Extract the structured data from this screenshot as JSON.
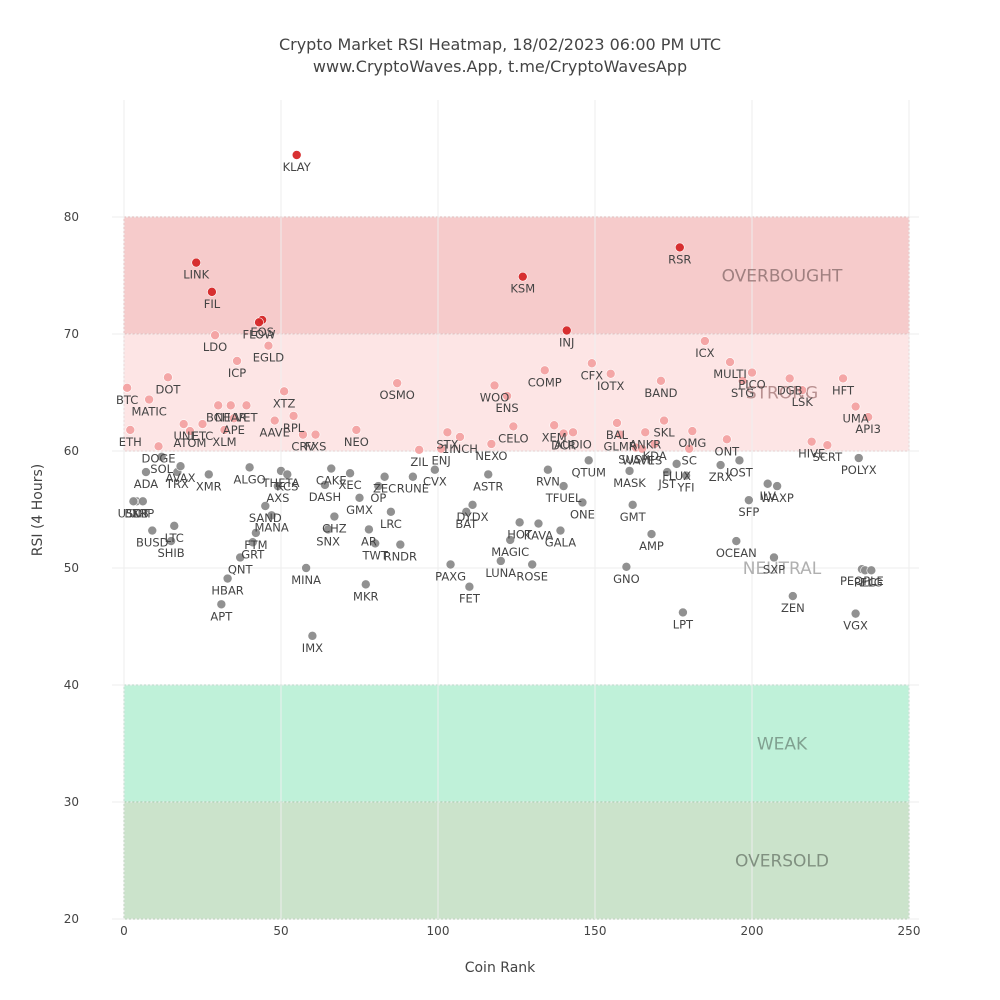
{
  "chart_data": {
    "type": "scatter",
    "title": "Crypto Market RSI Heatmap, 18/02/2023 06:00 PM UTC",
    "subtitle": "www.CryptoWaves.App, t.me/CryptoWavesApp",
    "xlabel": "Coin Rank",
    "ylabel": "RSI (4 Hours)",
    "xlim": [
      0,
      250
    ],
    "ylim": [
      20,
      90
    ],
    "xticks": [
      0,
      50,
      100,
      150,
      200,
      250
    ],
    "yticks": [
      20,
      30,
      40,
      50,
      60,
      70,
      80
    ],
    "grid": true,
    "zones": [
      {
        "name": "OVERBOUGHT",
        "y0": 70,
        "y1": 80,
        "fill": "#f0a8a8",
        "border": "#cc2222",
        "text_color": "#a08080"
      },
      {
        "name": "STRONG",
        "y0": 60,
        "y1": 70,
        "fill": "#fbd3d3",
        "border": "#e08080",
        "text_color": "#b89090"
      },
      {
        "name": "NEUTRAL",
        "y0": 40,
        "y1": 60,
        "fill": "none",
        "border": "none",
        "text_color": "#b0b0b0"
      },
      {
        "name": "WEAK",
        "y0": 30,
        "y1": 40,
        "fill": "#95e8c0",
        "border": "#22aa66",
        "text_color": "#80a090"
      },
      {
        "name": "OVERSOLD",
        "y0": 20,
        "y1": 30,
        "fill": "#a8d0a8",
        "border": "#117711",
        "text_color": "#809080"
      }
    ],
    "point_colors": {
      "overbought": "#d62728",
      "strong": "#f4a3a3",
      "neutral": "#8c8c8c",
      "weak": "#66cc99",
      "oversold": "#2e8b57"
    },
    "points": [
      {
        "label": "BTC",
        "x": 1,
        "y": 65.4
      },
      {
        "label": "ETH",
        "x": 2,
        "y": 61.8
      },
      {
        "label": "BNB",
        "x": 4,
        "y": 55.7
      },
      {
        "label": "USDT",
        "x": 3,
        "y": 55.7
      },
      {
        "label": "XRP",
        "x": 6,
        "y": 55.7
      },
      {
        "label": "ADA",
        "x": 7,
        "y": 58.2
      },
      {
        "label": "MATIC",
        "x": 8,
        "y": 64.4
      },
      {
        "label": "DOGE",
        "x": 11,
        "y": 60.4
      },
      {
        "label": "BUSD",
        "x": 9,
        "y": 53.2
      },
      {
        "label": "SOL",
        "x": 12,
        "y": 59.5
      },
      {
        "label": "DOT",
        "x": 14,
        "y": 66.3
      },
      {
        "label": "SHIB",
        "x": 15,
        "y": 52.3
      },
      {
        "label": "LTC",
        "x": 16,
        "y": 53.6
      },
      {
        "label": "TRX",
        "x": 17,
        "y": 58.2
      },
      {
        "label": "AVAX",
        "x": 18,
        "y": 58.7
      },
      {
        "label": "UNI",
        "x": 19,
        "y": 62.3
      },
      {
        "label": "ATOM",
        "x": 21,
        "y": 61.7
      },
      {
        "label": "LINK",
        "x": 23,
        "y": 76.1
      },
      {
        "label": "ETC",
        "x": 25,
        "y": 62.3
      },
      {
        "label": "XMR",
        "x": 27,
        "y": 58.0
      },
      {
        "label": "FIL",
        "x": 28,
        "y": 73.6
      },
      {
        "label": "LDO",
        "x": 29,
        "y": 69.9
      },
      {
        "label": "BCH",
        "x": 30,
        "y": 63.9
      },
      {
        "label": "XLM",
        "x": 32,
        "y": 61.8
      },
      {
        "label": "HBAR",
        "x": 33,
        "y": 49.1
      },
      {
        "label": "NEAR",
        "x": 34,
        "y": 63.9
      },
      {
        "label": "APE",
        "x": 35,
        "y": 62.8
      },
      {
        "label": "ICP",
        "x": 36,
        "y": 67.7
      },
      {
        "label": "QNT",
        "x": 37,
        "y": 50.9
      },
      {
        "label": "APT",
        "x": 31,
        "y": 46.9
      },
      {
        "label": "VET",
        "x": 39,
        "y": 63.9
      },
      {
        "label": "ALGO",
        "x": 40,
        "y": 58.6
      },
      {
        "label": "GRT",
        "x": 41,
        "y": 52.2
      },
      {
        "label": "FTM",
        "x": 42,
        "y": 53.0
      },
      {
        "label": "SAND",
        "x": 45,
        "y": 55.3
      },
      {
        "label": "EOS",
        "x": 44,
        "y": 71.2
      },
      {
        "label": "FLOW",
        "x": 43,
        "y": 71.0
      },
      {
        "label": "EGLD",
        "x": 46,
        "y": 69.0
      },
      {
        "label": "MANA",
        "x": 47,
        "y": 54.5
      },
      {
        "label": "AAVE",
        "x": 48,
        "y": 62.6
      },
      {
        "label": "AXS",
        "x": 49,
        "y": 57.0
      },
      {
        "label": "THETA",
        "x": 50,
        "y": 58.3
      },
      {
        "label": "XTZ",
        "x": 51,
        "y": 65.1
      },
      {
        "label": "KCS",
        "x": 52,
        "y": 58.0
      },
      {
        "label": "MINA",
        "x": 58,
        "y": 50.0
      },
      {
        "label": "RPL",
        "x": 54,
        "y": 63.0
      },
      {
        "label": "KLAY",
        "x": 55,
        "y": 85.3
      },
      {
        "label": "CRV",
        "x": 57,
        "y": 61.4
      },
      {
        "label": "FXS",
        "x": 61,
        "y": 61.4
      },
      {
        "label": "IMX",
        "x": 60,
        "y": 44.2
      },
      {
        "label": "SNX",
        "x": 65,
        "y": 53.3
      },
      {
        "label": "CHZ",
        "x": 67,
        "y": 54.4
      },
      {
        "label": "CAKE",
        "x": 66,
        "y": 58.5
      },
      {
        "label": "DASH",
        "x": 64,
        "y": 57.1
      },
      {
        "label": "XEC",
        "x": 72,
        "y": 58.1
      },
      {
        "label": "NEO",
        "x": 74,
        "y": 61.8
      },
      {
        "label": "GMX",
        "x": 75,
        "y": 56.0
      },
      {
        "label": "MKR",
        "x": 77,
        "y": 48.6
      },
      {
        "label": "AR",
        "x": 78,
        "y": 53.3
      },
      {
        "label": "TWT",
        "x": 80,
        "y": 52.1
      },
      {
        "label": "OP",
        "x": 81,
        "y": 57.0
      },
      {
        "label": "ZEC",
        "x": 83,
        "y": 57.8
      },
      {
        "label": "LRC",
        "x": 85,
        "y": 54.8
      },
      {
        "label": "RNDR",
        "x": 88,
        "y": 52.0
      },
      {
        "label": "OSMO",
        "x": 87,
        "y": 65.8
      },
      {
        "label": "RUNE",
        "x": 92,
        "y": 57.8
      },
      {
        "label": "ZIL",
        "x": 94,
        "y": 60.1
      },
      {
        "label": "CVX",
        "x": 99,
        "y": 58.4
      },
      {
        "label": "ENJ",
        "x": 101,
        "y": 60.2
      },
      {
        "label": "STX",
        "x": 103,
        "y": 61.6
      },
      {
        "label": "PAXG",
        "x": 104,
        "y": 50.3
      },
      {
        "label": "1INCH",
        "x": 107,
        "y": 61.2
      },
      {
        "label": "BAT",
        "x": 109,
        "y": 54.8
      },
      {
        "label": "DYDX",
        "x": 111,
        "y": 55.4
      },
      {
        "label": "FET",
        "x": 110,
        "y": 48.4
      },
      {
        "label": "ASTR",
        "x": 116,
        "y": 58.0
      },
      {
        "label": "NEXO",
        "x": 117,
        "y": 60.6
      },
      {
        "label": "WOO",
        "x": 118,
        "y": 65.6
      },
      {
        "label": "LUNA",
        "x": 120,
        "y": 50.6
      },
      {
        "label": "MAGIC",
        "x": 123,
        "y": 52.4
      },
      {
        "label": "ENS",
        "x": 122,
        "y": 64.7
      },
      {
        "label": "CELO",
        "x": 124,
        "y": 62.1
      },
      {
        "label": "HOT",
        "x": 126,
        "y": 53.9
      },
      {
        "label": "KSM",
        "x": 127,
        "y": 74.9
      },
      {
        "label": "ROSE",
        "x": 130,
        "y": 50.3
      },
      {
        "label": "KAVA",
        "x": 132,
        "y": 53.8
      },
      {
        "label": "COMP",
        "x": 134,
        "y": 66.9
      },
      {
        "label": "RVN",
        "x": 135,
        "y": 58.4
      },
      {
        "label": "XEM",
        "x": 137,
        "y": 62.2
      },
      {
        "label": "DCR",
        "x": 140,
        "y": 61.5
      },
      {
        "label": "GALA",
        "x": 139,
        "y": 53.2
      },
      {
        "label": "TFUEL",
        "x": 140,
        "y": 57.0
      },
      {
        "label": "INJ",
        "x": 141,
        "y": 70.3
      },
      {
        "label": "AUDIO",
        "x": 143,
        "y": 61.6
      },
      {
        "label": "ONE",
        "x": 146,
        "y": 55.6
      },
      {
        "label": "QTUM",
        "x": 148,
        "y": 59.2
      },
      {
        "label": "CFX",
        "x": 149,
        "y": 67.5
      },
      {
        "label": "IOTX",
        "x": 155,
        "y": 66.6
      },
      {
        "label": "BAL",
        "x": 157,
        "y": 62.4
      },
      {
        "label": "GLMR",
        "x": 158,
        "y": 61.4
      },
      {
        "label": "GNO",
        "x": 160,
        "y": 50.1
      },
      {
        "label": "MASK",
        "x": 161,
        "y": 58.3
      },
      {
        "label": "GMT",
        "x": 162,
        "y": 55.4
      },
      {
        "label": "SUSHI",
        "x": 163,
        "y": 60.3
      },
      {
        "label": "WAVES",
        "x": 165,
        "y": 60.2
      },
      {
        "label": "ANKR",
        "x": 166,
        "y": 61.6
      },
      {
        "label": "AMP",
        "x": 168,
        "y": 52.9
      },
      {
        "label": "KDA",
        "x": 169,
        "y": 60.6
      },
      {
        "label": "BAND",
        "x": 171,
        "y": 66.0
      },
      {
        "label": "SKL",
        "x": 172,
        "y": 62.6
      },
      {
        "label": "JST",
        "x": 173,
        "y": 58.2
      },
      {
        "label": "FLUX",
        "x": 176,
        "y": 58.9
      },
      {
        "label": "LPT",
        "x": 178,
        "y": 46.2
      },
      {
        "label": "RSR",
        "x": 177,
        "y": 77.4
      },
      {
        "label": "YFI",
        "x": 179,
        "y": 57.9
      },
      {
        "label": "SC",
        "x": 180,
        "y": 60.2
      },
      {
        "label": "OMG",
        "x": 181,
        "y": 61.7
      },
      {
        "label": "ICX",
        "x": 185,
        "y": 69.4
      },
      {
        "label": "ZRX",
        "x": 190,
        "y": 58.8
      },
      {
        "label": "ONT",
        "x": 192,
        "y": 61.0
      },
      {
        "label": "MULTI",
        "x": 193,
        "y": 67.6
      },
      {
        "label": "OCEAN",
        "x": 195,
        "y": 52.3
      },
      {
        "label": "IOST",
        "x": 196,
        "y": 59.2
      },
      {
        "label": "STG",
        "x": 197,
        "y": 66.0
      },
      {
        "label": "NEO2",
        "display": "PICO",
        "x": 200,
        "y": 66.7
      },
      {
        "label": "SFP",
        "x": 199,
        "y": 55.8
      },
      {
        "label": "ILV",
        "x": 205,
        "y": 57.2
      },
      {
        "label": "WAXP",
        "x": 208,
        "y": 57.0
      },
      {
        "label": "SXP",
        "x": 207,
        "y": 50.9
      },
      {
        "label": "DGB",
        "x": 212,
        "y": 66.2
      },
      {
        "label": "ZEN",
        "x": 213,
        "y": 47.6
      },
      {
        "label": "LSK",
        "x": 216,
        "y": 65.2
      },
      {
        "label": "HIVE",
        "x": 219,
        "y": 60.8
      },
      {
        "label": "SCRT",
        "x": 224,
        "y": 60.5
      },
      {
        "label": "HFT",
        "x": 229,
        "y": 66.2
      },
      {
        "label": "VGX",
        "x": 233,
        "y": 46.1
      },
      {
        "label": "UMA",
        "x": 233,
        "y": 63.8
      },
      {
        "label": "API3",
        "x": 237,
        "y": 62.9
      },
      {
        "label": "POLYX",
        "x": 234,
        "y": 59.4
      },
      {
        "label": "PEOPLE",
        "x": 235,
        "y": 49.9
      },
      {
        "label": "RLC",
        "x": 236,
        "y": 49.8
      },
      {
        "label": "SKLP",
        "display": "ELG",
        "x": 238,
        "y": 49.8
      }
    ]
  }
}
